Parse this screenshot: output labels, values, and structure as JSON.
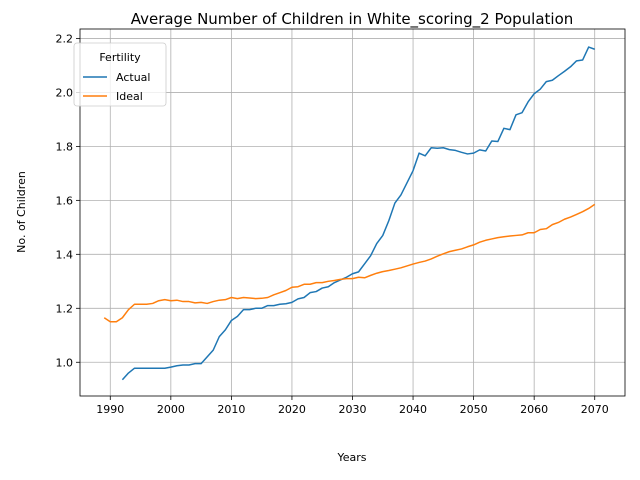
{
  "chart_data": {
    "type": "line",
    "title": "Average Number of Children in White_scoring_2 Population",
    "xlabel": "Years",
    "ylabel": "No. of Children",
    "xlim": [
      1985,
      2075
    ],
    "ylim": [
      0.875,
      2.235
    ],
    "xticks": [
      1990,
      2000,
      2010,
      2020,
      2030,
      2040,
      2050,
      2060,
      2070
    ],
    "yticks": [
      1.0,
      1.2,
      1.4,
      1.6,
      1.8,
      2.0,
      2.2
    ],
    "xtick_labels": [
      "1990",
      "2000",
      "2010",
      "2020",
      "2030",
      "2040",
      "2050",
      "2060",
      "2070"
    ],
    "ytick_labels": [
      "1.0",
      "1.2",
      "1.4",
      "1.6",
      "1.8",
      "2.0",
      "2.2"
    ],
    "grid": true,
    "legend": {
      "title": "Fertility",
      "position": "top-left"
    },
    "series": [
      {
        "name": "Actual",
        "color": "#1f77b4",
        "x": [
          1992,
          1993,
          1994,
          1995,
          1996,
          1997,
          1998,
          1999,
          2000,
          2001,
          2002,
          2003,
          2004,
          2005,
          2006,
          2007,
          2008,
          2009,
          2010,
          2011,
          2012,
          2013,
          2014,
          2015,
          2016,
          2017,
          2018,
          2019,
          2020,
          2021,
          2022,
          2023,
          2024,
          2025,
          2026,
          2027,
          2028,
          2029,
          2030,
          2031,
          2032,
          2033,
          2034,
          2035,
          2036,
          2037,
          2038,
          2039,
          2040,
          2041,
          2042,
          2043,
          2044,
          2045,
          2046,
          2047,
          2048,
          2049,
          2050,
          2051,
          2052,
          2053,
          2054,
          2055,
          2056,
          2057,
          2058,
          2059,
          2060,
          2061,
          2062,
          2063,
          2064,
          2065,
          2066,
          2067,
          2068,
          2069,
          2070
        ],
        "values": [
          0.935,
          0.96,
          0.978,
          0.978,
          0.978,
          0.978,
          0.978,
          0.978,
          0.982,
          0.987,
          0.99,
          0.99,
          0.995,
          0.995,
          1.02,
          1.045,
          1.095,
          1.12,
          1.155,
          1.17,
          1.195,
          1.195,
          1.2,
          1.2,
          1.21,
          1.21,
          1.215,
          1.217,
          1.222,
          1.235,
          1.24,
          1.258,
          1.262,
          1.275,
          1.28,
          1.295,
          1.305,
          1.315,
          1.328,
          1.335,
          1.365,
          1.395,
          1.44,
          1.47,
          1.525,
          1.59,
          1.62,
          1.665,
          1.71,
          1.775,
          1.765,
          1.795,
          1.793,
          1.795,
          1.788,
          1.785,
          1.778,
          1.772,
          1.775,
          1.787,
          1.783,
          1.82,
          1.818,
          1.867,
          1.862,
          1.917,
          1.925,
          1.965,
          1.995,
          2.012,
          2.04,
          2.045,
          2.062,
          2.078,
          2.095,
          2.117,
          2.12,
          2.168,
          2.16
        ]
      },
      {
        "name": "Ideal",
        "color": "#ff7f0e",
        "x": [
          1989,
          1990,
          1991,
          1992,
          1993,
          1994,
          1995,
          1996,
          1997,
          1998,
          1999,
          2000,
          2001,
          2002,
          2003,
          2004,
          2005,
          2006,
          2007,
          2008,
          2009,
          2010,
          2011,
          2012,
          2013,
          2014,
          2015,
          2016,
          2017,
          2018,
          2019,
          2020,
          2021,
          2022,
          2023,
          2024,
          2025,
          2026,
          2027,
          2028,
          2029,
          2030,
          2031,
          2032,
          2033,
          2034,
          2035,
          2036,
          2037,
          2038,
          2039,
          2040,
          2041,
          2042,
          2043,
          2044,
          2045,
          2046,
          2047,
          2048,
          2049,
          2050,
          2051,
          2052,
          2053,
          2054,
          2055,
          2056,
          2057,
          2058,
          2059,
          2060,
          2061,
          2062,
          2063,
          2064,
          2065,
          2066,
          2067,
          2068,
          2069,
          2070
        ],
        "values": [
          1.165,
          1.15,
          1.15,
          1.165,
          1.195,
          1.215,
          1.215,
          1.215,
          1.218,
          1.228,
          1.232,
          1.228,
          1.23,
          1.225,
          1.225,
          1.22,
          1.222,
          1.218,
          1.225,
          1.23,
          1.232,
          1.24,
          1.236,
          1.24,
          1.238,
          1.236,
          1.237,
          1.24,
          1.25,
          1.258,
          1.266,
          1.278,
          1.28,
          1.289,
          1.289,
          1.295,
          1.295,
          1.3,
          1.303,
          1.307,
          1.31,
          1.31,
          1.315,
          1.313,
          1.322,
          1.33,
          1.336,
          1.34,
          1.345,
          1.35,
          1.357,
          1.364,
          1.37,
          1.375,
          1.383,
          1.393,
          1.402,
          1.41,
          1.415,
          1.42,
          1.428,
          1.435,
          1.445,
          1.452,
          1.457,
          1.462,
          1.465,
          1.468,
          1.47,
          1.472,
          1.48,
          1.48,
          1.492,
          1.495,
          1.51,
          1.518,
          1.53,
          1.538,
          1.548,
          1.558,
          1.57,
          1.585
        ]
      }
    ]
  }
}
